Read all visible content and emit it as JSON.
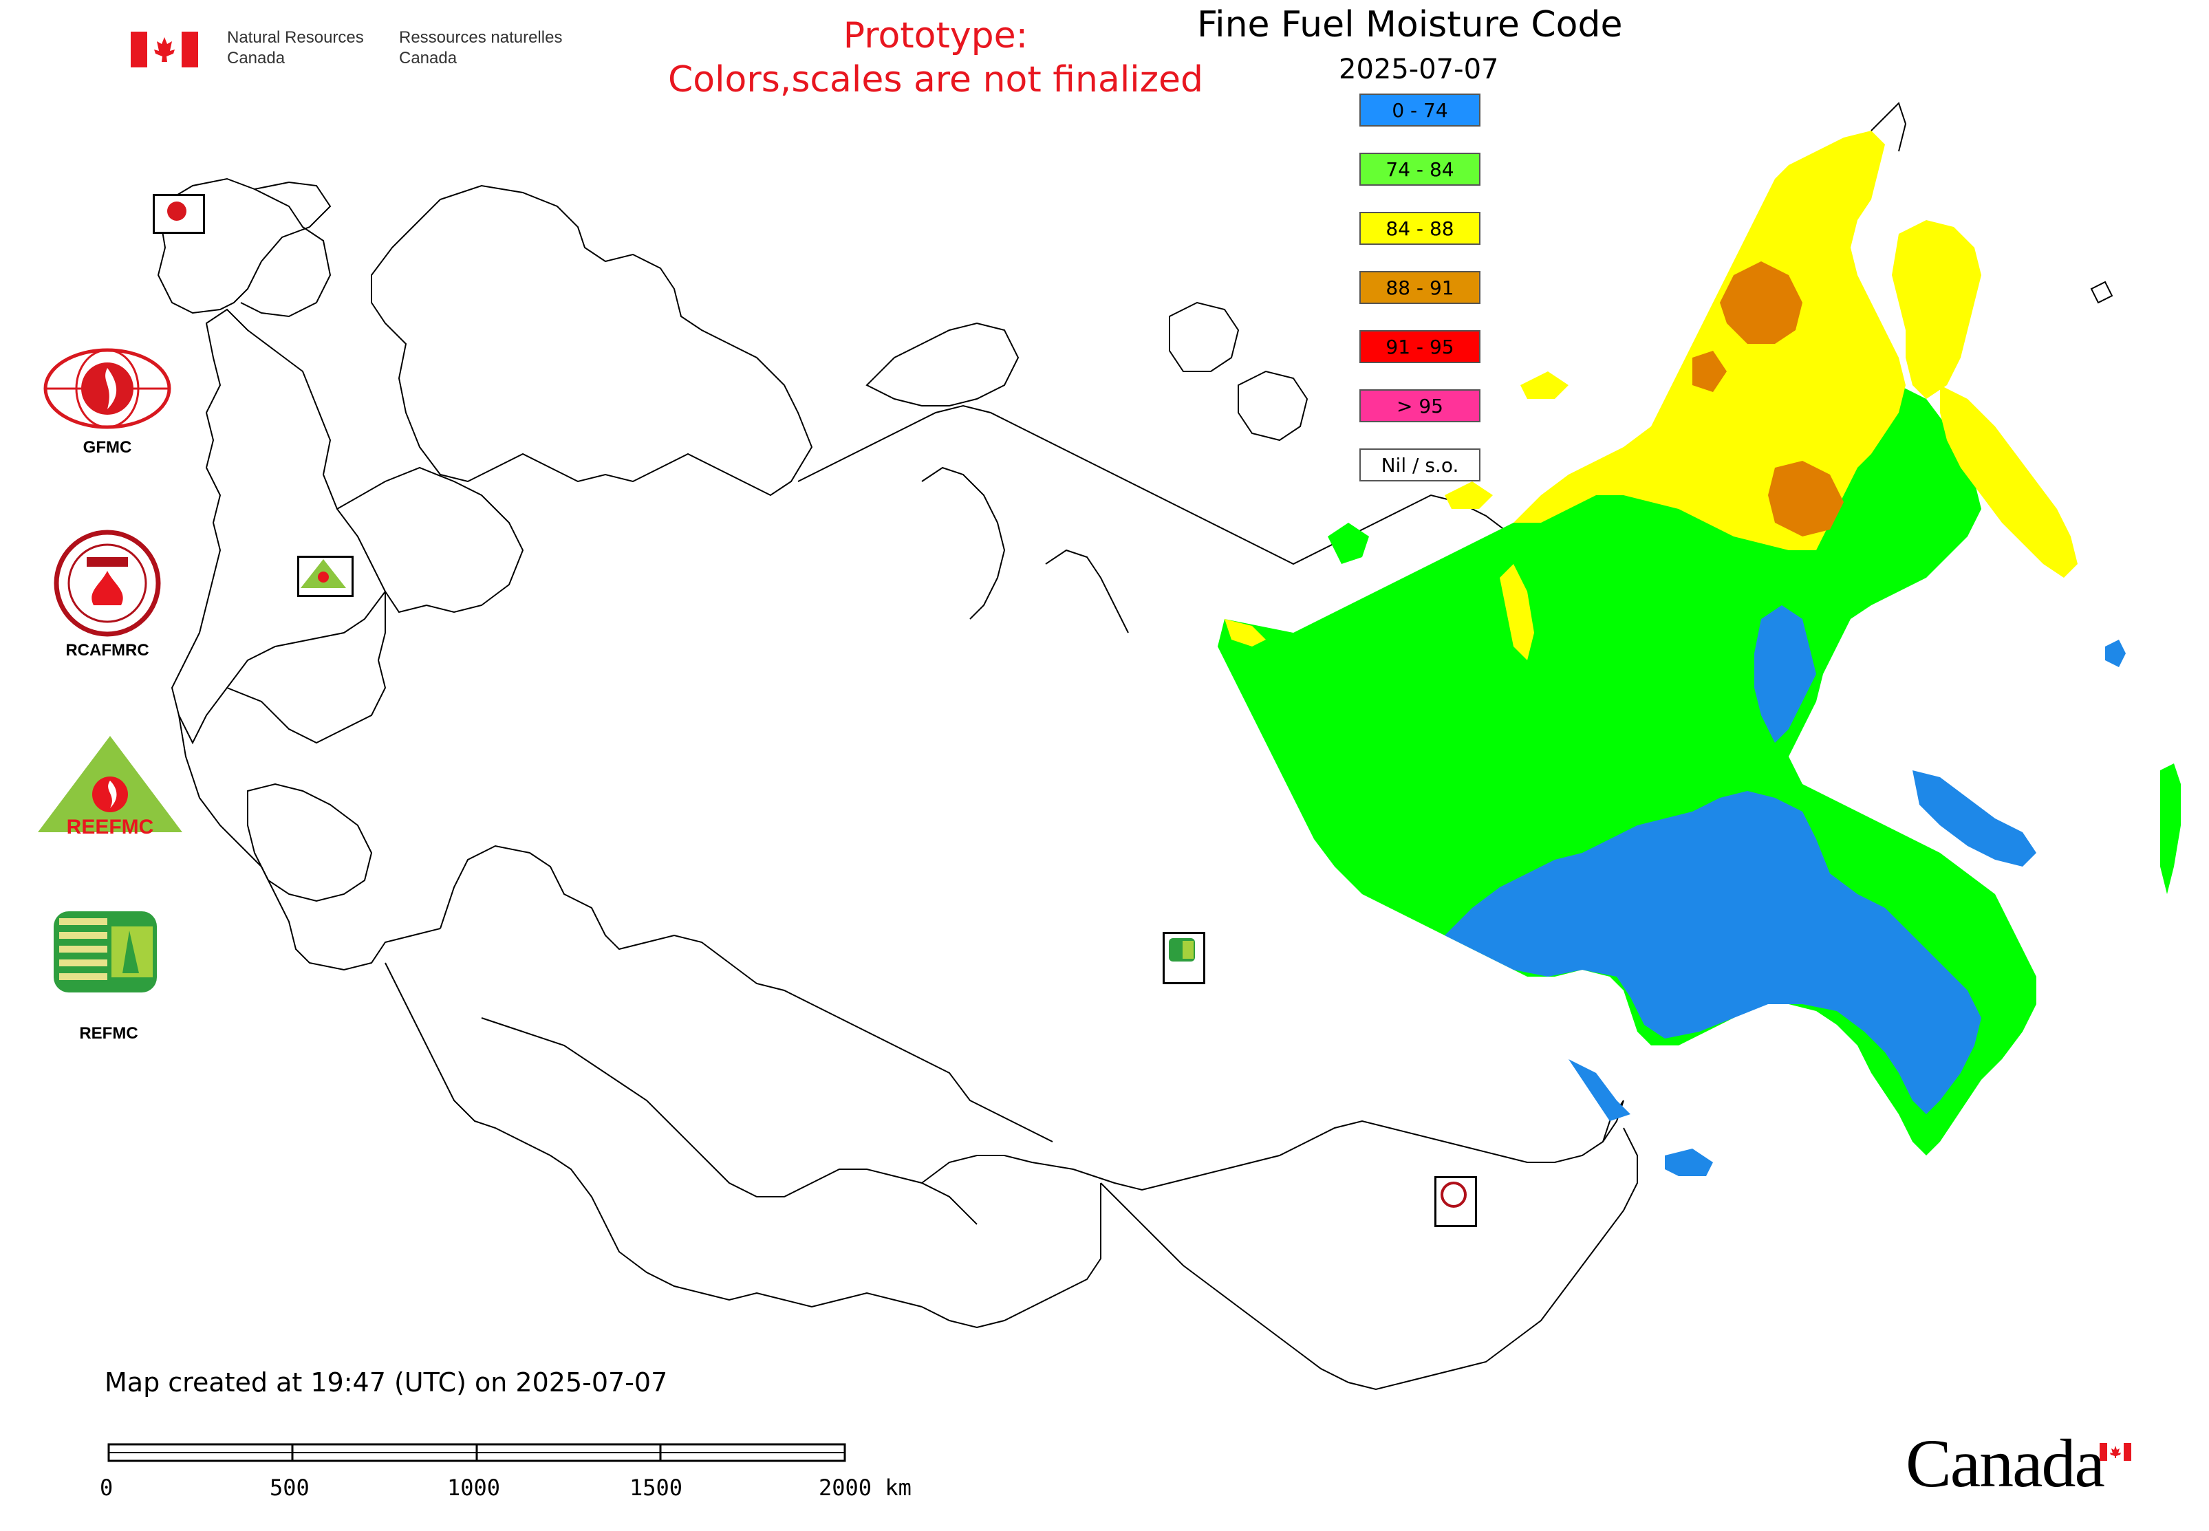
{
  "header": {
    "department_en_1": "Natural Resources",
    "department_en_2": "Canada",
    "department_fr_1": "Ressources naturelles",
    "department_fr_2": "Canada"
  },
  "prototype_note": {
    "line1": "Prototype:",
    "line2": "Colors,scales are not finalized"
  },
  "map": {
    "title": "Fine Fuel Moisture Code",
    "date": "2025-07-07",
    "created_note": "Map created at 19:47 (UTC) on 2025-07-07"
  },
  "legend": [
    {
      "label": "0 - 74",
      "color": "#1e90ff"
    },
    {
      "label": "74 - 84",
      "color": "#66ff33"
    },
    {
      "label": "84 - 88",
      "color": "#ffff00"
    },
    {
      "label": "88 - 91",
      "color": "#e09000"
    },
    {
      "label": "91 - 95",
      "color": "#ff0000"
    },
    {
      "label": "> 95",
      "color": "#ff3399"
    },
    {
      "label": "Nil / s.o.",
      "color": "#ffffff"
    }
  ],
  "logos": {
    "gfmc": "GFMC",
    "rcafmrc": "RCAFMRC",
    "reefmc": "REEFMC",
    "refmc": "REFMC"
  },
  "scale_bar": {
    "ticks": [
      "0",
      "500",
      "1000",
      "1500",
      "2000 km"
    ]
  },
  "wordmark": "Canada",
  "colors": {
    "green": "#00ff00",
    "blue": "#1e88e8",
    "yellow": "#ffff00",
    "orange": "#e07e00",
    "prototype_red": "#e8161f",
    "flag_red": "#e8161f"
  }
}
